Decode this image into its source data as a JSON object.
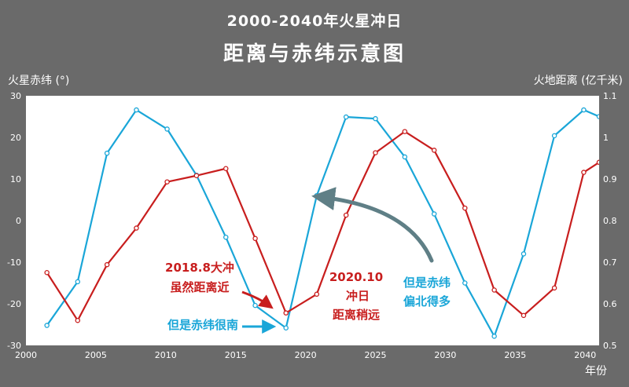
{
  "chart_data": {
    "type": "line",
    "title": "2000-2040年火星冲日",
    "subtitle": "距离与赤纬示意图",
    "ylabel_left": "火星赤纬 (°)",
    "ylabel_right": "火地距离 (亿千米)",
    "xlabel": "年份",
    "xlim": [
      2000,
      2041
    ],
    "ylim_left": [
      -30,
      30
    ],
    "ylim_right": [
      0.5,
      1.1
    ],
    "x_ticks": [
      2000,
      2005,
      2010,
      2015,
      2020,
      2025,
      2030,
      2035,
      2040
    ],
    "y_left_ticks": [
      -30,
      -20,
      -10,
      0,
      10,
      20,
      30
    ],
    "y_right_ticks": [
      0.5,
      0.6,
      0.7,
      0.8,
      0.9,
      1,
      1.1
    ],
    "series": [
      {
        "axis": "left",
        "color": "#1aa6d8",
        "x": [
          2001.5,
          2003.7,
          2005.8,
          2007.9,
          2010.1,
          2012.2,
          2014.3,
          2016.4,
          2018.6,
          2020.8,
          2022.9,
          2025.0,
          2027.1,
          2029.2,
          2031.4,
          2033.5,
          2035.6,
          2037.8,
          2039.9,
          2041.0
        ],
        "values": [
          -25.2,
          -14.7,
          16.2,
          26.6,
          22.0,
          10.9,
          -4.0,
          -20.4,
          -25.8,
          6.0,
          24.9,
          24.5,
          15.3,
          1.6,
          -15.0,
          -27.8,
          -8.0,
          20.4,
          26.6,
          25.0
        ]
      },
      {
        "axis": "right",
        "color": "#c81e1e",
        "x": [
          2001.5,
          2003.7,
          2005.8,
          2007.9,
          2010.1,
          2012.2,
          2014.3,
          2016.4,
          2018.6,
          2020.8,
          2022.9,
          2025.0,
          2027.1,
          2029.2,
          2031.4,
          2033.5,
          2035.6,
          2037.8,
          2039.9,
          2041.0
        ],
        "values": [
          0.675,
          0.56,
          0.694,
          0.782,
          0.893,
          0.908,
          0.925,
          0.757,
          0.578,
          0.623,
          0.813,
          0.963,
          1.014,
          0.969,
          0.83,
          0.633,
          0.572,
          0.638,
          0.916,
          0.94
        ]
      }
    ],
    "annotations": [
      {
        "id": "a1",
        "text": "2018.8大冲",
        "color": "#c81e1e"
      },
      {
        "id": "a2",
        "text": "虽然距离近",
        "color": "#c81e1e"
      },
      {
        "id": "a3",
        "text": "2020.10",
        "color": "#c81e1e"
      },
      {
        "id": "a4",
        "text": "冲日",
        "color": "#c81e1e"
      },
      {
        "id": "a5",
        "text": "距离稍远",
        "color": "#c81e1e"
      },
      {
        "id": "a6",
        "text": "但是赤纬很南",
        "color": "#1aa6d8"
      },
      {
        "id": "a7",
        "text": "但是赤纬",
        "color": "#1aa6d8"
      },
      {
        "id": "a8",
        "text": "偏北得多",
        "color": "#1aa6d8"
      }
    ]
  }
}
